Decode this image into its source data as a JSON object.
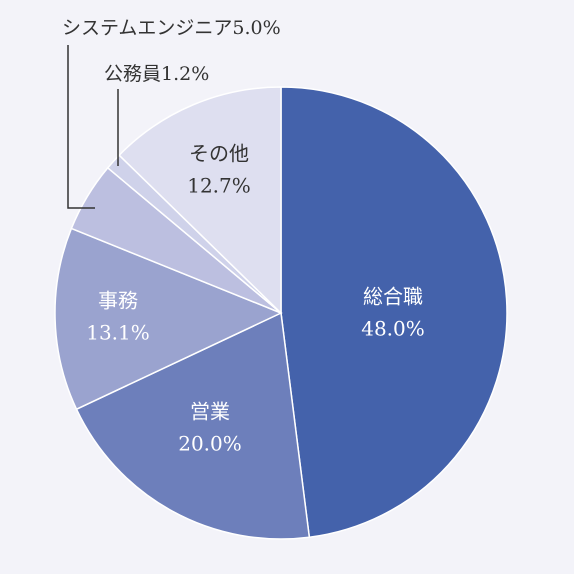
{
  "chart_data": {
    "type": "pie",
    "title": "",
    "slices": [
      {
        "label": "総合職",
        "value": 48.0,
        "display": "48.0%",
        "color": "#4462ab"
      },
      {
        "label": "営業",
        "value": 20.0,
        "display": "20.0%",
        "color": "#6d7fbb"
      },
      {
        "label": "事務",
        "value": 13.1,
        "display": "13.1%",
        "color": "#9aa3cf"
      },
      {
        "label": "システムエンジニア",
        "value": 5.0,
        "display": "5.0%",
        "color": "#bcbfe0"
      },
      {
        "label": "公務員",
        "value": 1.2,
        "display": "1.2%",
        "color": "#cfd2ea"
      },
      {
        "label": "その他",
        "value": 12.7,
        "display": "12.7%",
        "color": "#dedff0"
      }
    ],
    "label_colors": {
      "inside_dark": "#ffffff",
      "inside_light": "#333333",
      "callout": "#333333"
    },
    "start": "12 o'clock",
    "direction": "clockwise"
  }
}
